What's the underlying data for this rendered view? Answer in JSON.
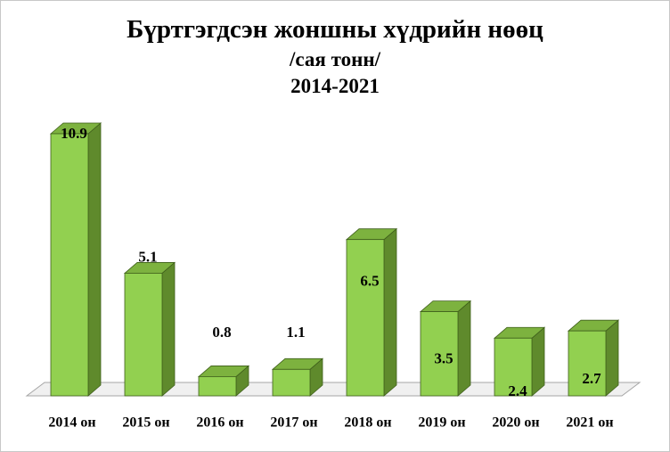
{
  "chart_data": {
    "type": "bar",
    "title": "Бүртгэгдсэн жоншны хүдрийн нөөц",
    "subtitle": "/сая тонн/",
    "period": "2014-2021",
    "categories": [
      "2014 он",
      "2015 он",
      "2016 он",
      "2017 он",
      "2018 он",
      "2019 он",
      "2020 он",
      "2021 он"
    ],
    "values": [
      10.9,
      5.1,
      0.8,
      1.1,
      6.5,
      3.5,
      2.4,
      2.7
    ],
    "data_labels": [
      "10.9",
      "5.1",
      "0.8",
      "1.1",
      "6.5",
      "3.5",
      "2.4",
      "2.7"
    ],
    "ylim": [
      0,
      12
    ],
    "grid": false,
    "legend": "none",
    "colors": {
      "bar_front": "#92d050",
      "bar_top": "#7db23f",
      "bar_side": "#5f8a2c",
      "bar_edge": "#3f5f1b",
      "floor": "#f0f0f0",
      "floor_edge": "#a6a6a6"
    }
  }
}
